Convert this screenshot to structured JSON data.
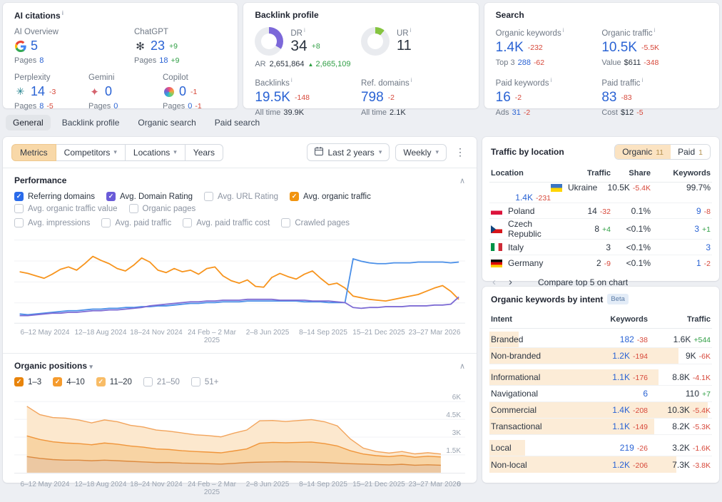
{
  "ai_citations": {
    "title": "AI citations",
    "items": [
      {
        "label": "AI Overview",
        "icon": "google-icon",
        "value": "5",
        "delta": "",
        "pages_label": "Pages",
        "pages": "8",
        "pages_delta": ""
      },
      {
        "label": "ChatGPT",
        "icon": "chatgpt-icon",
        "value": "23",
        "delta": "+9",
        "pages_label": "Pages",
        "pages": "18",
        "pages_delta": "+9"
      },
      {
        "label": "Perplexity",
        "icon": "perplexity-icon",
        "value": "14",
        "delta": "-3",
        "pages_label": "Pages",
        "pages": "8",
        "pages_delta": "-5"
      },
      {
        "label": "Gemini",
        "icon": "gemini-icon",
        "value": "0",
        "delta": "",
        "pages_label": "Pages",
        "pages": "0",
        "pages_delta": ""
      },
      {
        "label": "Copilot",
        "icon": "copilot-icon",
        "value": "0",
        "delta": "-1",
        "pages_label": "Pages",
        "pages": "0",
        "pages_delta": "-1"
      }
    ]
  },
  "backlink_profile": {
    "title": "Backlink profile",
    "dr": {
      "label": "DR",
      "value": "34",
      "delta": "+8",
      "percent": 34,
      "color": "#7c68d9"
    },
    "ar": {
      "label": "AR",
      "value": "2,651,864",
      "delta": "2,665,109"
    },
    "ur": {
      "label": "UR",
      "value": "11",
      "percent": 11,
      "color": "#85c440"
    },
    "backlinks": {
      "label": "Backlinks",
      "value": "19.5K",
      "delta": "-148",
      "alltime_label": "All time",
      "alltime": "39.9K"
    },
    "ref_domains": {
      "label": "Ref. domains",
      "value": "798",
      "delta": "-2",
      "alltime_label": "All time",
      "alltime": "2.1K"
    }
  },
  "search": {
    "title": "Search",
    "metrics": [
      {
        "label": "Organic keywords",
        "value": "1.4K",
        "delta": "-232",
        "sub_label": "Top 3",
        "sub_value": "288",
        "sub_delta": "-62"
      },
      {
        "label": "Organic traffic",
        "value": "10.5K",
        "delta": "-5.5K",
        "sub_label": "Value",
        "sub_value": "$611",
        "sub_delta": "-348"
      },
      {
        "label": "Paid keywords",
        "value": "16",
        "delta": "-2",
        "sub_label": "Ads",
        "sub_value": "31",
        "sub_delta": "-2"
      },
      {
        "label": "Paid traffic",
        "value": "83",
        "delta": "-83",
        "sub_label": "Cost",
        "sub_value": "$12",
        "sub_delta": "-5"
      }
    ]
  },
  "tabs": [
    {
      "label": "General",
      "active": true
    },
    {
      "label": "Backlink profile",
      "active": false
    },
    {
      "label": "Organic search",
      "active": false
    },
    {
      "label": "Paid search",
      "active": false
    }
  ],
  "toolbar": {
    "segments": [
      "Metrics",
      "Competitors",
      "Locations",
      "Years"
    ],
    "date_range": "Last 2 years",
    "granularity": "Weekly"
  },
  "performance": {
    "title": "Performance",
    "checkboxes_row1": [
      {
        "label": "Referring domains",
        "checked": true,
        "color": "#2a6bea"
      },
      {
        "label": "Avg. Domain Rating",
        "checked": true,
        "color": "#6a5bd8"
      },
      {
        "label": "Avg. URL Rating",
        "checked": false
      },
      {
        "label": "Avg. organic traffic",
        "checked": true,
        "color": "#f1940f"
      },
      {
        "label": "Avg. organic traffic value",
        "checked": false
      },
      {
        "label": "Organic pages",
        "checked": false
      }
    ],
    "checkboxes_row2": [
      {
        "label": "Avg. impressions",
        "checked": false
      },
      {
        "label": "Avg. paid traffic",
        "checked": false
      },
      {
        "label": "Avg. paid traffic cost",
        "checked": false
      },
      {
        "label": "Crawled pages",
        "checked": false
      }
    ]
  },
  "organic_positions": {
    "title": "Organic positions",
    "checkboxes": [
      {
        "label": "1–3",
        "checked": true,
        "color": "#e8840c"
      },
      {
        "label": "4–10",
        "checked": true,
        "color": "#f59b2d"
      },
      {
        "label": "11–20",
        "checked": true,
        "color": "#f8bc66"
      },
      {
        "label": "21–50",
        "checked": false
      },
      {
        "label": "51+",
        "checked": false
      }
    ]
  },
  "traffic_by_location": {
    "title": "Traffic by location",
    "toggle": {
      "organic_label": "Organic",
      "organic_count": "11",
      "paid_label": "Paid",
      "paid_count": "1"
    },
    "columns": [
      "Location",
      "Traffic",
      "Share",
      "Keywords"
    ],
    "rows": [
      {
        "location": "Ukraine",
        "flag": "ua",
        "traffic": "10.5K",
        "traffic_delta": "-5.4K",
        "share": "99.7%",
        "keywords": "1.4K",
        "keywords_delta": "-231",
        "highlight": true
      },
      {
        "location": "Poland",
        "flag": "pl",
        "traffic": "14",
        "traffic_delta": "-32",
        "share": "0.1%",
        "keywords": "9",
        "keywords_delta": "-8",
        "highlight": false
      },
      {
        "location": "Czech Republic",
        "flag": "cz",
        "traffic": "8",
        "traffic_delta": "+4",
        "share": "<0.1%",
        "keywords": "3",
        "keywords_delta": "+1",
        "highlight": false
      },
      {
        "location": "Italy",
        "flag": "it",
        "traffic": "3",
        "traffic_delta": "",
        "share": "<0.1%",
        "keywords": "3",
        "keywords_delta": "",
        "highlight": false
      },
      {
        "location": "Germany",
        "flag": "de",
        "traffic": "2",
        "traffic_delta": "-9",
        "share": "<0.1%",
        "keywords": "1",
        "keywords_delta": "-2",
        "highlight": false
      }
    ],
    "pager_compare_label": "Compare top 5 on chart"
  },
  "keywords_by_intent": {
    "title": "Organic keywords by intent",
    "badge": "Beta",
    "columns": [
      "Intent",
      "Keywords",
      "Traffic"
    ],
    "rows": [
      {
        "intent": "Branded",
        "keywords": "182",
        "keywords_delta": "-38",
        "traffic": "1.6K",
        "traffic_delta": "+544",
        "bar_pct": 13
      },
      {
        "intent": "Non-branded",
        "keywords": "1.2K",
        "keywords_delta": "-194",
        "traffic": "9K",
        "traffic_delta": "-6K",
        "bar_pct": 85
      },
      {
        "intent": "Informational",
        "keywords": "1.1K",
        "keywords_delta": "-176",
        "traffic": "8.8K",
        "traffic_delta": "-4.1K",
        "bar_pct": 76
      },
      {
        "intent": "Navigational",
        "keywords": "6",
        "keywords_delta": "",
        "traffic": "110",
        "traffic_delta": "+7",
        "bar_pct": 0
      },
      {
        "intent": "Commercial",
        "keywords": "1.4K",
        "keywords_delta": "-208",
        "traffic": "10.3K",
        "traffic_delta": "-5.4K",
        "bar_pct": 98
      },
      {
        "intent": "Transactional",
        "keywords": "1.1K",
        "keywords_delta": "-149",
        "traffic": "8.2K",
        "traffic_delta": "-5.3K",
        "bar_pct": 74
      },
      {
        "intent": "Local",
        "keywords": "219",
        "keywords_delta": "-26",
        "traffic": "3.2K",
        "traffic_delta": "-1.6K",
        "bar_pct": 16
      },
      {
        "intent": "Non-local",
        "keywords": "1.2K",
        "keywords_delta": "-206",
        "traffic": "7.3K",
        "traffic_delta": "-3.8K",
        "bar_pct": 84
      }
    ]
  },
  "chart_data": [
    {
      "type": "line",
      "title": "Performance",
      "grid": true,
      "legend_position": "checkbox toolbar above chart",
      "y_scale": "normalized 0-100, no y-axis labels shown",
      "x_ticks": [
        "6–12 May 2024",
        "12–18 Aug 2024",
        "18–24 Nov 2024",
        "24 Feb – 2 Mar 2025",
        "2–8 Jun 2025",
        "8–14 Sep 2025",
        "15–21 Dec 2025",
        "23–27 Mar 2026"
      ],
      "series": [
        {
          "name": "Avg. organic traffic",
          "color": "#f7941d",
          "values": [
            60,
            58,
            55,
            52,
            57,
            63,
            66,
            62,
            70,
            79,
            74,
            70,
            64,
            61,
            68,
            77,
            72,
            62,
            59,
            64,
            60,
            62,
            57,
            64,
            66,
            55,
            49,
            46,
            50,
            42,
            41,
            53,
            58,
            54,
            51,
            57,
            61,
            52,
            44,
            46,
            40,
            30,
            28,
            26,
            25,
            24,
            26,
            28,
            30,
            32,
            36,
            40,
            43,
            36,
            26
          ]
        },
        {
          "name": "Referring domains",
          "color": "#4a8fe8",
          "values": [
            8,
            7,
            8,
            9,
            10,
            11,
            12,
            12,
            13,
            14,
            14,
            15,
            15,
            16,
            16,
            17,
            17,
            18,
            18,
            19,
            20,
            21,
            21,
            22,
            22,
            23,
            23,
            23,
            24,
            24,
            24,
            24,
            24,
            24,
            24,
            23,
            23,
            23,
            22,
            22,
            22,
            76,
            73,
            71,
            70,
            70,
            71,
            71,
            71,
            72,
            72,
            72,
            72,
            71,
            72
          ]
        },
        {
          "name": "Avg. Domain Rating",
          "color": "#7d6bd4",
          "values": [
            6,
            6,
            7,
            8,
            9,
            9,
            10,
            10,
            11,
            12,
            12,
            13,
            13,
            14,
            15,
            16,
            18,
            19,
            20,
            21,
            22,
            23,
            23,
            24,
            24,
            25,
            25,
            25,
            26,
            26,
            26,
            26,
            25,
            25,
            25,
            25,
            24,
            24,
            24,
            23,
            22,
            16,
            15,
            16,
            16,
            17,
            17,
            17,
            18,
            18,
            18,
            19,
            19,
            20,
            29
          ]
        }
      ]
    },
    {
      "type": "area",
      "stacked": true,
      "title": "Organic positions",
      "grid": true,
      "unit": "keywords, thousands",
      "ylim": [
        0,
        6400
      ],
      "y_ticks": [
        "6K",
        "4.5K",
        "3K",
        "1.5K",
        "0"
      ],
      "x_ticks": [
        "6–12 May 2024",
        "12–18 Aug 2024",
        "18–24 Nov 2024",
        "24 Feb – 2 Mar 2025",
        "2–8 Jun 2025",
        "8–14 Sep 2025",
        "15–21 Dec 2025",
        "23–27 Mar 2026"
      ],
      "series": [
        {
          "name": "1–3",
          "fill": "#ecc8a2",
          "edge": "#dc8a3f",
          "values": [
            1.35,
            1.2,
            1.1,
            1.05,
            1.05,
            1.0,
            1.05,
            1.0,
            0.95,
            0.9,
            0.85,
            0.85,
            0.8,
            0.78,
            0.75,
            0.72,
            0.78,
            0.85,
            0.88,
            0.9,
            0.92,
            0.9,
            0.88,
            0.85,
            0.8,
            0.75,
            0.72,
            0.68,
            0.65,
            0.7,
            0.62,
            0.66,
            0.62
          ]
        },
        {
          "name": "4–10",
          "fill": "#f8d4a4",
          "edge": "#f0953a",
          "values": [
            1.75,
            1.6,
            1.5,
            1.45,
            1.4,
            1.35,
            1.45,
            1.4,
            1.3,
            1.25,
            1.15,
            1.1,
            1.05,
            1.0,
            0.98,
            0.95,
            1.05,
            1.15,
            1.6,
            1.65,
            1.6,
            1.65,
            1.7,
            1.6,
            1.45,
            1.1,
            0.85,
            0.75,
            0.7,
            0.75,
            0.68,
            0.72,
            0.7
          ]
        },
        {
          "name": "11–20",
          "fill": "#fce8ce",
          "edge": "#f2a45c",
          "values": [
            2.5,
            2.1,
            2.05,
            2.1,
            2.0,
            1.85,
            1.95,
            1.9,
            1.75,
            1.7,
            1.6,
            1.55,
            1.5,
            1.42,
            1.4,
            1.35,
            1.5,
            1.6,
            1.9,
            1.85,
            1.8,
            1.85,
            1.9,
            1.85,
            1.7,
            1.0,
            0.5,
            0.35,
            0.3,
            0.33,
            0.28,
            0.3,
            0.25
          ]
        }
      ]
    }
  ]
}
